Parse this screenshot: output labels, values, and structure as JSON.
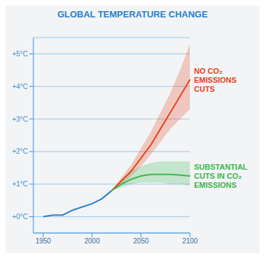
{
  "chart_data": {
    "type": "line",
    "title": "GLOBAL TEMPERATURE CHANGE",
    "x": [
      1950,
      1960,
      1970,
      1980,
      1990,
      2000,
      2010,
      2020,
      2030,
      2040,
      2050,
      2060,
      2070,
      2080,
      2090,
      2100
    ],
    "xlim": [
      1940,
      2100
    ],
    "xticks": [
      1950,
      2000,
      2050,
      2100
    ],
    "ylim": [
      -0.5,
      5.5
    ],
    "yticks": [
      {
        "value": 0,
        "label": "+0°C"
      },
      {
        "value": 1,
        "label": "+1°C"
      },
      {
        "value": 2,
        "label": "+2°C"
      },
      {
        "value": 3,
        "label": "+3°C"
      },
      {
        "value": 4,
        "label": "+4°C"
      },
      {
        "value": 5,
        "label": "+5°C"
      }
    ],
    "grid": "y",
    "legend": false,
    "series": [
      {
        "color": "#2a7fc9",
        "values": [
          0.0,
          0.05,
          0.05,
          0.2,
          0.3,
          0.4,
          0.55,
          0.8,
          null,
          null,
          null,
          null,
          null,
          null,
          null,
          null
        ]
      },
      {
        "name": "NO CO₂ EMISSIONS CUTS",
        "color": "#e8401c",
        "values": [
          null,
          null,
          null,
          null,
          null,
          null,
          null,
          0.8,
          1.1,
          1.4,
          1.8,
          2.2,
          2.7,
          3.2,
          3.7,
          4.2
        ],
        "band_low": [
          null,
          null,
          null,
          null,
          null,
          null,
          null,
          0.8,
          1.0,
          1.25,
          1.55,
          1.9,
          2.3,
          2.7,
          3.0,
          3.3
        ],
        "band_high": [
          null,
          null,
          null,
          null,
          null,
          null,
          null,
          0.8,
          1.2,
          1.6,
          2.1,
          2.6,
          3.2,
          3.8,
          4.5,
          5.3
        ]
      },
      {
        "name": "SUBSTANTIAL CUTS IN CO₂ EMISSIONS",
        "color": "#3cb54a",
        "values": [
          null,
          null,
          null,
          null,
          null,
          null,
          null,
          0.8,
          1.0,
          1.15,
          1.25,
          1.3,
          1.3,
          1.3,
          1.28,
          1.25
        ],
        "band_low": [
          null,
          null,
          null,
          null,
          null,
          null,
          null,
          0.8,
          0.9,
          1.0,
          1.05,
          1.05,
          1.05,
          1.0,
          1.0,
          0.95
        ],
        "band_high": [
          null,
          null,
          null,
          null,
          null,
          null,
          null,
          0.8,
          1.15,
          1.4,
          1.55,
          1.65,
          1.7,
          1.7,
          1.7,
          1.7
        ]
      }
    ]
  }
}
